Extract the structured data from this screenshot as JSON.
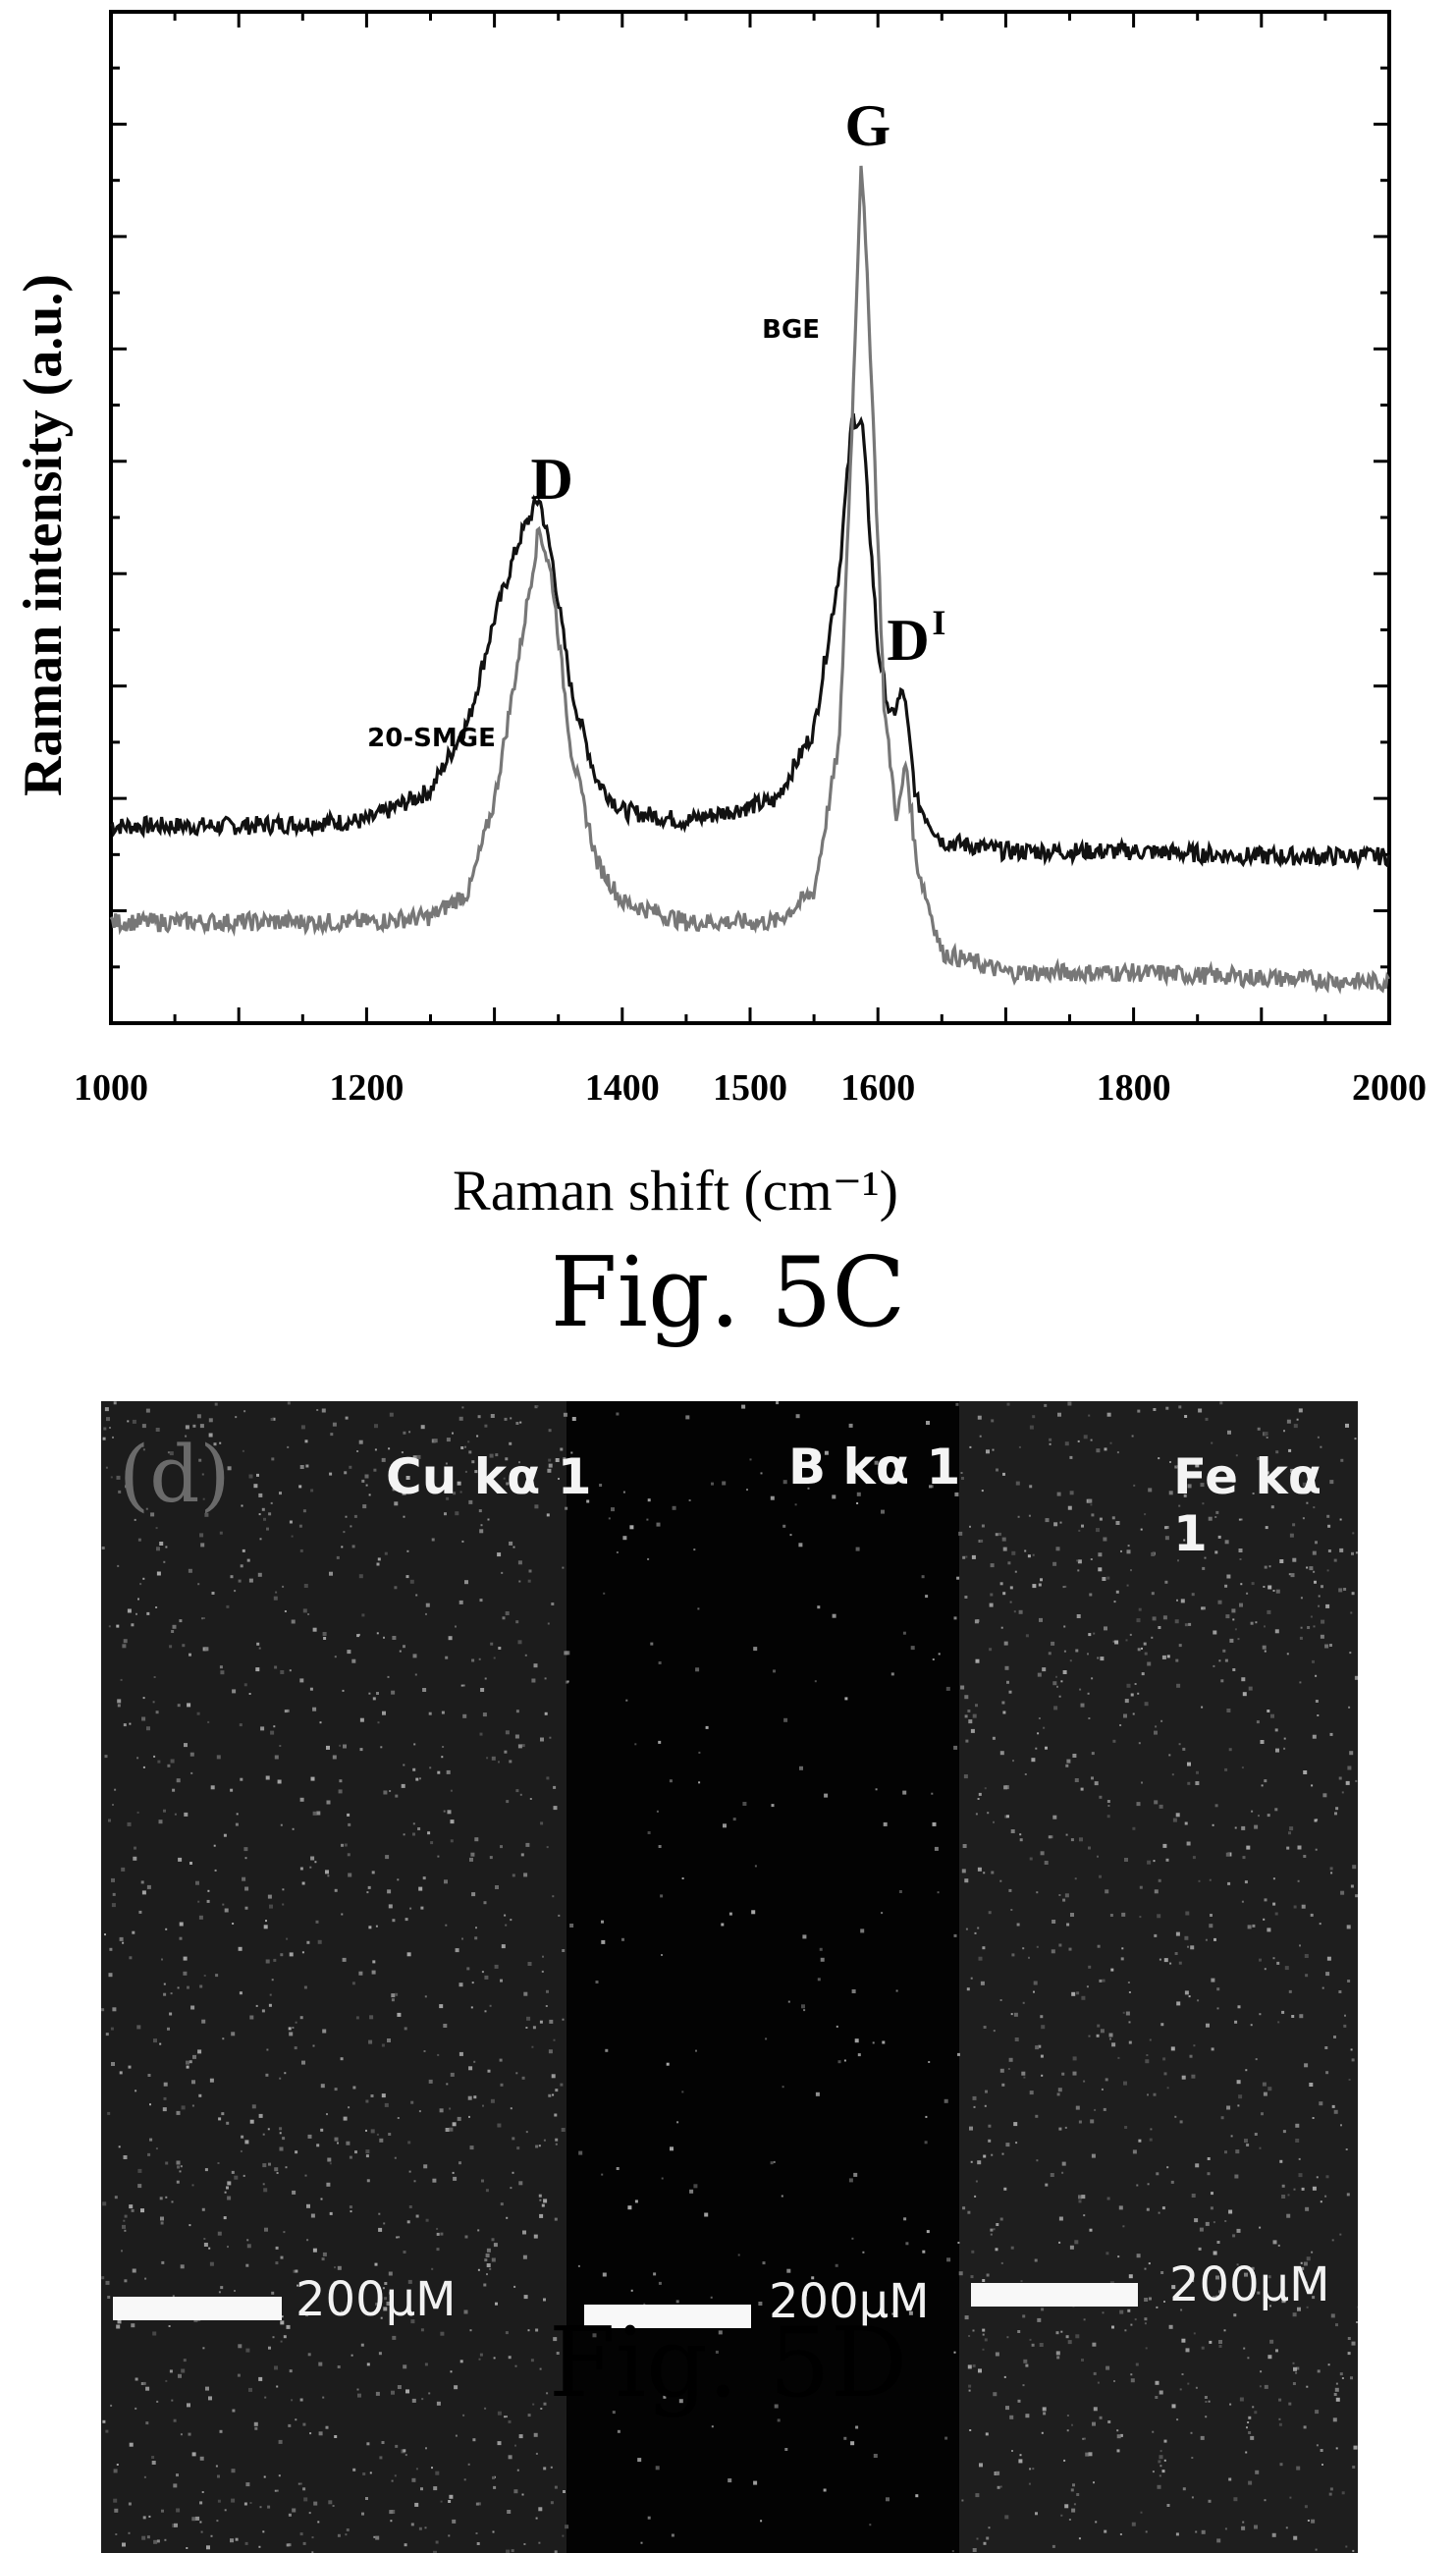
{
  "chart_data": {
    "type": "line",
    "xlabel": "Raman shift (cm⁻¹)",
    "ylabel": "Raman intensity (a.u.)",
    "xlim": [
      1000,
      2000
    ],
    "ylim": [
      0,
      1
    ],
    "xticks": [
      1000,
      1200,
      1400,
      1500,
      1600,
      1800,
      2000
    ],
    "grid": false,
    "series": [
      {
        "name": "20-SMGE",
        "color": "#111111",
        "x": [
          1000,
          1100,
          1200,
          1250,
          1280,
          1300,
          1320,
          1335,
          1345,
          1360,
          1380,
          1400,
          1450,
          1520,
          1550,
          1570,
          1580,
          1588,
          1600,
          1610,
          1620,
          1630,
          1650,
          1700,
          1800,
          1900,
          2000
        ],
        "y": [
          0.195,
          0.195,
          0.2,
          0.23,
          0.3,
          0.4,
          0.48,
          0.52,
          0.46,
          0.33,
          0.24,
          0.21,
          0.2,
          0.22,
          0.29,
          0.45,
          0.6,
          0.59,
          0.37,
          0.3,
          0.33,
          0.22,
          0.18,
          0.17,
          0.17,
          0.165,
          0.165
        ]
      },
      {
        "name": "BGE",
        "color": "#777777",
        "x": [
          1000,
          1100,
          1200,
          1250,
          1280,
          1300,
          1320,
          1335,
          1345,
          1360,
          1380,
          1400,
          1450,
          1520,
          1550,
          1570,
          1580,
          1587,
          1595,
          1605,
          1615,
          1622,
          1630,
          1650,
          1700,
          1800,
          1900,
          2000
        ],
        "y": [
          0.1,
          0.1,
          0.1,
          0.105,
          0.13,
          0.22,
          0.37,
          0.49,
          0.44,
          0.27,
          0.16,
          0.12,
          0.1,
          0.1,
          0.13,
          0.28,
          0.6,
          0.86,
          0.64,
          0.31,
          0.2,
          0.26,
          0.16,
          0.07,
          0.05,
          0.05,
          0.045,
          0.04
        ]
      }
    ],
    "annotations": [
      {
        "text": "G",
        "x": 1592
      },
      {
        "text": "D",
        "x": 1345
      },
      {
        "text": "D",
        "superscript": "I",
        "x": 1627
      },
      {
        "text": "BGE",
        "x": 1555
      },
      {
        "text": "20-SMGE",
        "x": 1250
      }
    ]
  },
  "caption_c": "Fig. 5C",
  "caption_d": "Fig. 5D",
  "map_panel": {
    "tag": "(d)",
    "regions": [
      {
        "label": "Cu kα 1",
        "scale": "200μM",
        "color": "#1c1c1c"
      },
      {
        "label": "B kα 1",
        "scale": "200μM",
        "color": "#030303"
      },
      {
        "label": "Fe kα 1",
        "scale": "200μM",
        "color": "#1e1e1e"
      }
    ]
  }
}
